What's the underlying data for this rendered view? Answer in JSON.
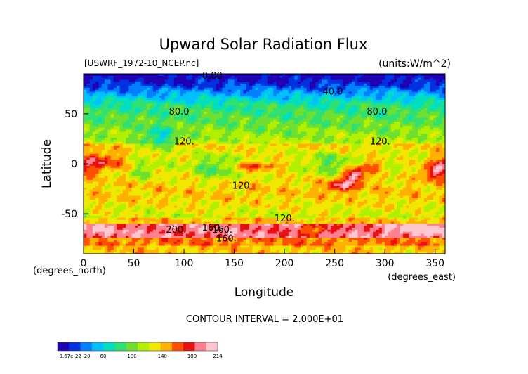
{
  "chart_data": {
    "type": "heatmap",
    "title": "Upward Solar Radiation Flux",
    "file_label": "[USWRF_1972-10_NCEP.nc]",
    "units_label": "(units:W/m^2)",
    "xlabel": "Longitude",
    "ylabel": "Latitude",
    "x_unit_label": "(degrees_east)",
    "y_unit_label": "(degrees_north)",
    "xlim": [
      0,
      360
    ],
    "ylim": [
      -90,
      90
    ],
    "x_ticks": [
      0,
      50,
      100,
      150,
      200,
      250,
      300,
      350
    ],
    "y_ticks": [
      -50,
      0,
      50
    ],
    "contour_interval_text": "CONTOUR INTERVAL = 2.000E+01",
    "contour_labels": [
      {
        "text": "0.00",
        "lon": 118,
        "lat": 88
      },
      {
        "text": "40.0",
        "lon": 238,
        "lat": 72
      },
      {
        "text": "80.0",
        "lon": 85,
        "lat": 52
      },
      {
        "text": "80.0",
        "lon": 282,
        "lat": 52
      },
      {
        "text": "120.",
        "lon": 90,
        "lat": 22
      },
      {
        "text": "120.",
        "lon": 285,
        "lat": 22
      },
      {
        "text": "120.",
        "lon": 148,
        "lat": -22
      },
      {
        "text": "120.",
        "lon": 190,
        "lat": -55
      },
      {
        "text": "200.",
        "lon": 82,
        "lat": -66
      },
      {
        "text": "160.",
        "lon": 128,
        "lat": -66
      },
      {
        "text": "160.",
        "lon": 118,
        "lat": -64
      },
      {
        "text": "160.",
        "lon": 132,
        "lat": -75
      }
    ],
    "colorbar": {
      "tick_labels": [
        "-9.67e-22",
        "20",
        "60",
        "100",
        "140",
        "180",
        "214"
      ],
      "range": [
        0,
        214
      ],
      "colors": [
        "#2000b0",
        "#0030e0",
        "#0080ff",
        "#00c0ff",
        "#00e0c0",
        "#30e070",
        "#70e030",
        "#b0f000",
        "#f0e800",
        "#ffb000",
        "#ff5000",
        "#e81010",
        "#ff8090",
        "#ffc8d0"
      ]
    }
  }
}
